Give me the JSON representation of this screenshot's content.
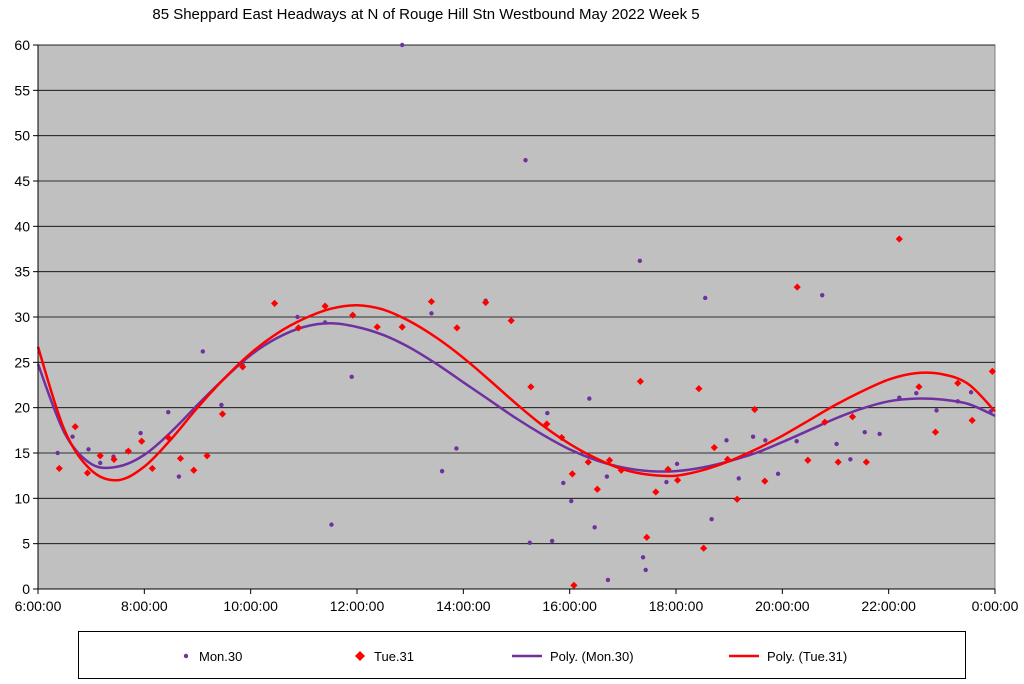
{
  "chart_data": {
    "type": "scatter",
    "title": "85 Sheppard East Headways at N of Rouge Hill Stn Westbound May 2022  Week 5",
    "xlabel": "",
    "ylabel": "",
    "x_unit": "hours",
    "xlim": [
      6,
      24
    ],
    "ylim": [
      0,
      60
    ],
    "x_ticks": [
      6,
      8,
      10,
      12,
      14,
      16,
      18,
      20,
      22,
      24
    ],
    "x_tick_labels": [
      "6:00:00",
      "8:00:00",
      "10:00:00",
      "12:00:00",
      "14:00:00",
      "16:00:00",
      "18:00:00",
      "20:00:00",
      "22:00:00",
      "0:00:00"
    ],
    "y_ticks": [
      0,
      5,
      10,
      15,
      20,
      25,
      30,
      35,
      40,
      45,
      50,
      55,
      60
    ],
    "grid": "horizontal",
    "plot_background": "#c0c0c0",
    "legend_position": "bottom",
    "series": [
      {
        "name": "Mon.30",
        "kind": "scatter",
        "marker": "circle",
        "color": "#7030a0",
        "points": [
          [
            6.37,
            15
          ],
          [
            6.65,
            16.8
          ],
          [
            6.95,
            15.4
          ],
          [
            7.17,
            13.9
          ],
          [
            7.42,
            14.6
          ],
          [
            7.68,
            15.2
          ],
          [
            7.93,
            17.2
          ],
          [
            8.45,
            19.5
          ],
          [
            8.65,
            12.4
          ],
          [
            9.1,
            26.2
          ],
          [
            9.45,
            20.3
          ],
          [
            9.85,
            24.7
          ],
          [
            10.88,
            30
          ],
          [
            11.4,
            29.4
          ],
          [
            11.52,
            7.1
          ],
          [
            11.9,
            23.4
          ],
          [
            12.85,
            60
          ],
          [
            13.4,
            30.4
          ],
          [
            13.6,
            13
          ],
          [
            13.87,
            15.5
          ],
          [
            14.42,
            31.8
          ],
          [
            15.17,
            47.3
          ],
          [
            15.25,
            5.1
          ],
          [
            15.58,
            19.4
          ],
          [
            15.67,
            5.3
          ],
          [
            15.88,
            11.7
          ],
          [
            16.03,
            9.7
          ],
          [
            16.37,
            21
          ],
          [
            16.47,
            6.8
          ],
          [
            16.7,
            12.4
          ],
          [
            16.72,
            1.0
          ],
          [
            17.32,
            36.2
          ],
          [
            17.38,
            3.5
          ],
          [
            17.43,
            2.1
          ],
          [
            17.82,
            11.8
          ],
          [
            18.02,
            13.8
          ],
          [
            18.55,
            32.1
          ],
          [
            18.67,
            7.7
          ],
          [
            18.95,
            16.4
          ],
          [
            19.18,
            12.2
          ],
          [
            19.45,
            16.8
          ],
          [
            19.68,
            16.4
          ],
          [
            19.92,
            12.7
          ],
          [
            20.27,
            16.3
          ],
          [
            20.75,
            32.4
          ],
          [
            21.02,
            16.0
          ],
          [
            21.28,
            14.3
          ],
          [
            21.55,
            17.3
          ],
          [
            21.83,
            17.1
          ],
          [
            22.2,
            21.1
          ],
          [
            22.52,
            21.6
          ],
          [
            22.9,
            19.7
          ],
          [
            23.3,
            20.7
          ],
          [
            23.55,
            21.7
          ],
          [
            23.92,
            19.6
          ]
        ]
      },
      {
        "name": "Tue.31",
        "kind": "scatter",
        "marker": "diamond",
        "color": "#ff0000",
        "points": [
          [
            6.4,
            13.3
          ],
          [
            6.7,
            17.9
          ],
          [
            6.93,
            12.8
          ],
          [
            7.17,
            14.7
          ],
          [
            7.43,
            14.3
          ],
          [
            7.7,
            15.2
          ],
          [
            7.95,
            16.3
          ],
          [
            8.15,
            13.3
          ],
          [
            8.45,
            16.7
          ],
          [
            8.68,
            14.4
          ],
          [
            8.93,
            13.1
          ],
          [
            9.18,
            14.7
          ],
          [
            9.47,
            19.3
          ],
          [
            9.85,
            24.5
          ],
          [
            10.45,
            31.5
          ],
          [
            10.9,
            28.8
          ],
          [
            11.4,
            31.2
          ],
          [
            11.92,
            30.2
          ],
          [
            12.38,
            28.9
          ],
          [
            12.85,
            28.9
          ],
          [
            13.4,
            31.7
          ],
          [
            13.88,
            28.8
          ],
          [
            14.42,
            31.6
          ],
          [
            14.9,
            29.6
          ],
          [
            15.27,
            22.3
          ],
          [
            15.57,
            18.2
          ],
          [
            15.85,
            16.7
          ],
          [
            16.05,
            12.7
          ],
          [
            16.08,
            0.4
          ],
          [
            16.35,
            14.0
          ],
          [
            16.52,
            11.0
          ],
          [
            16.75,
            14.2
          ],
          [
            16.97,
            13.1
          ],
          [
            17.33,
            22.9
          ],
          [
            17.45,
            5.7
          ],
          [
            17.62,
            10.7
          ],
          [
            17.85,
            13.2
          ],
          [
            18.03,
            12.0
          ],
          [
            18.43,
            22.1
          ],
          [
            18.52,
            4.5
          ],
          [
            18.72,
            15.6
          ],
          [
            18.97,
            14.3
          ],
          [
            19.15,
            9.9
          ],
          [
            19.48,
            19.8
          ],
          [
            19.67,
            11.9
          ],
          [
            20.28,
            33.3
          ],
          [
            20.48,
            14.2
          ],
          [
            20.8,
            18.4
          ],
          [
            21.05,
            14.0
          ],
          [
            21.32,
            19.0
          ],
          [
            21.58,
            14.0
          ],
          [
            22.2,
            38.6
          ],
          [
            22.57,
            22.3
          ],
          [
            22.88,
            17.3
          ],
          [
            23.3,
            22.7
          ],
          [
            23.57,
            18.6
          ],
          [
            23.95,
            24.0
          ]
        ]
      },
      {
        "name": "Poly. (Mon.30)",
        "kind": "trendline",
        "color": "#7030a0",
        "points": [
          [
            6,
            24.8
          ],
          [
            6.5,
            17.2
          ],
          [
            7,
            13.8
          ],
          [
            7.5,
            13.5
          ],
          [
            8,
            14.8
          ],
          [
            8.5,
            17.3
          ],
          [
            9,
            20.3
          ],
          [
            9.5,
            23.2
          ],
          [
            10,
            25.8
          ],
          [
            10.5,
            27.7
          ],
          [
            11,
            28.9
          ],
          [
            11.5,
            29.3
          ],
          [
            12,
            28.9
          ],
          [
            12.5,
            28.0
          ],
          [
            13,
            26.6
          ],
          [
            13.5,
            24.8
          ],
          [
            14,
            22.8
          ],
          [
            14.5,
            20.8
          ],
          [
            15,
            18.8
          ],
          [
            15.5,
            17.0
          ],
          [
            16,
            15.4
          ],
          [
            16.5,
            14.2
          ],
          [
            17,
            13.4
          ],
          [
            17.5,
            13.0
          ],
          [
            18,
            13.0
          ],
          [
            18.5,
            13.4
          ],
          [
            19,
            14.1
          ],
          [
            19.5,
            15.0
          ],
          [
            20,
            16.2
          ],
          [
            20.5,
            17.5
          ],
          [
            21,
            18.8
          ],
          [
            21.5,
            19.9
          ],
          [
            22,
            20.7
          ],
          [
            22.5,
            21.0
          ],
          [
            23,
            20.9
          ],
          [
            23.5,
            20.4
          ],
          [
            24,
            19.1
          ]
        ]
      },
      {
        "name": "Poly. (Tue.31)",
        "kind": "trendline",
        "color": "#ff0000",
        "points": [
          [
            6,
            26.7
          ],
          [
            6.5,
            17.5
          ],
          [
            7,
            13.1
          ],
          [
            7.5,
            12.0
          ],
          [
            8,
            13.5
          ],
          [
            8.5,
            16.5
          ],
          [
            9,
            20.0
          ],
          [
            9.5,
            23.2
          ],
          [
            10,
            26.0
          ],
          [
            10.5,
            28.2
          ],
          [
            11,
            29.8
          ],
          [
            11.5,
            30.9
          ],
          [
            12,
            31.3
          ],
          [
            12.5,
            30.8
          ],
          [
            13,
            29.5
          ],
          [
            13.5,
            27.7
          ],
          [
            14,
            25.5
          ],
          [
            14.5,
            23.0
          ],
          [
            15,
            20.4
          ],
          [
            15.5,
            18.0
          ],
          [
            16,
            16.0
          ],
          [
            16.5,
            14.4
          ],
          [
            17,
            13.2
          ],
          [
            17.5,
            12.6
          ],
          [
            18,
            12.5
          ],
          [
            18.5,
            13.1
          ],
          [
            19,
            14.1
          ],
          [
            19.5,
            15.4
          ],
          [
            20,
            16.9
          ],
          [
            20.5,
            18.6
          ],
          [
            21,
            20.3
          ],
          [
            21.5,
            21.8
          ],
          [
            22,
            23.1
          ],
          [
            22.5,
            23.8
          ],
          [
            23,
            23.7
          ],
          [
            23.5,
            22.6
          ],
          [
            24,
            19.6
          ]
        ]
      }
    ]
  }
}
